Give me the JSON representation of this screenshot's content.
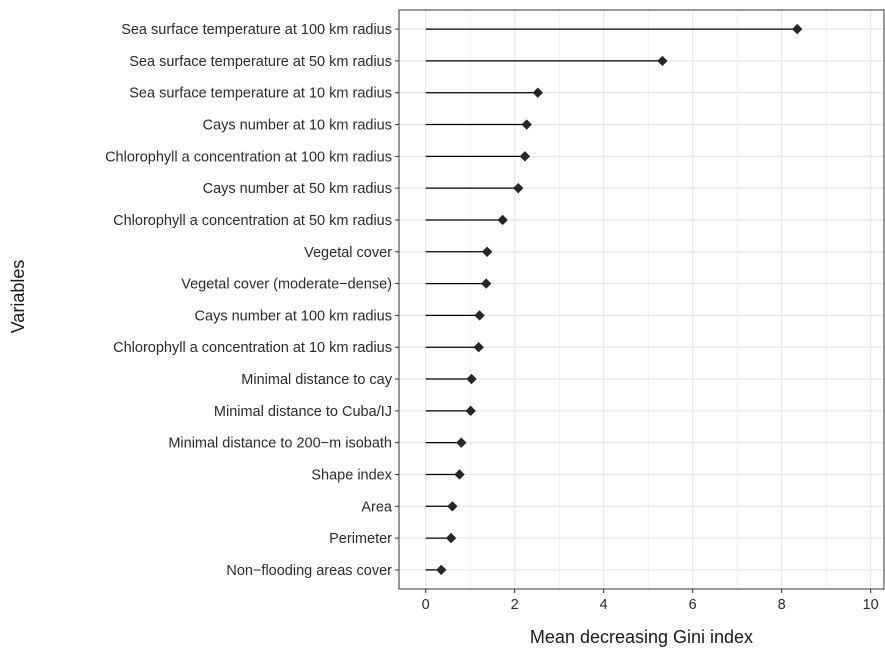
{
  "chart_data": {
    "type": "lollipop",
    "xlabel": "Mean decreasing Gini index",
    "ylabel": "Variables",
    "xlim": [
      -0.6,
      10.3
    ],
    "xticks": [
      0,
      2,
      4,
      6,
      8,
      10
    ],
    "grid": true,
    "categories": [
      "Sea surface temperature at 100 km radius",
      "Sea surface temperature at 50 km radius",
      "Sea surface temperature at 10 km radius",
      "Cays number at 10 km radius",
      "Chlorophyll a concentration at 100 km radius",
      "Cays number at 50 km radius",
      "Chlorophyll a concentration at 50 km radius",
      "Vegetal cover",
      "Vegetal cover (moderate−dense)",
      "Cays number at 100 km radius",
      "Chlorophyll a concentration at 10 km radius",
      "Minimal distance to cay",
      "Minimal distance to Cuba/IJ",
      "Minimal distance to 200−m isobath",
      "Shape index",
      "Area",
      "Perimeter",
      "Non−flooding areas cover"
    ],
    "values": [
      8.35,
      5.32,
      2.52,
      2.27,
      2.23,
      2.08,
      1.73,
      1.38,
      1.36,
      1.21,
      1.19,
      1.03,
      1.01,
      0.8,
      0.76,
      0.6,
      0.57,
      0.35
    ],
    "marker": "diamond",
    "colors": {
      "stem": "#000000",
      "marker": "#262626",
      "grid": "#e6e6e6",
      "panel_border": "#333333",
      "text": "#2b2b2b"
    }
  }
}
